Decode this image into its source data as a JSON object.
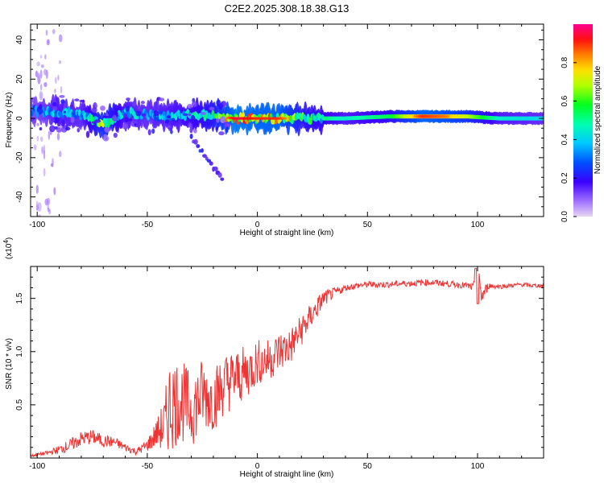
{
  "title": "C2E2.2025.308.18.38.G13",
  "colors": {
    "snr_line": "#ee3333",
    "axis": "#000000",
    "background": "#ffffff"
  },
  "chart_data": [
    {
      "type": "heatmap",
      "title": "C2E2.2025.308.18.38.G13",
      "xlabel": "Height of straight line (km)",
      "ylabel": "Frequency (Hz)",
      "xlim": [
        -103,
        130
      ],
      "ylim": [
        -50,
        48
      ],
      "xticks": [
        "-100",
        "-50",
        "0",
        "50",
        "100"
      ],
      "xtick_values": [
        -100,
        -50,
        0,
        50,
        100
      ],
      "yticks": [
        "40",
        "20",
        "0",
        "-20",
        "-40"
      ],
      "ytick_values": [
        40,
        20,
        0,
        -20,
        -40
      ],
      "colorbar": {
        "label": "Normalized spectral amplitude",
        "range": [
          0,
          1
        ],
        "ticks": [
          "0.0",
          "0.2",
          "0.4",
          "0.6",
          "0.8"
        ],
        "tick_values": [
          0.0,
          0.2,
          0.4,
          0.6,
          0.8
        ],
        "colormap": "rainbow"
      },
      "band": {
        "description_points": [
          {
            "x": -103,
            "y": 4,
            "amp": 0.3
          },
          {
            "x": -90,
            "y": 3,
            "amp": 0.45
          },
          {
            "x": -80,
            "y": 2,
            "amp": 0.4
          },
          {
            "x": -70,
            "y": -3,
            "amp": 0.7
          },
          {
            "x": -60,
            "y": 3,
            "amp": 0.45
          },
          {
            "x": -50,
            "y": 2,
            "amp": 0.4
          },
          {
            "x": -40,
            "y": 1,
            "amp": 0.45
          },
          {
            "x": -30,
            "y": 2,
            "amp": 0.5
          },
          {
            "x": -20,
            "y": 1,
            "amp": 0.6
          },
          {
            "x": -10,
            "y": 0,
            "amp": 0.9
          },
          {
            "x": 0,
            "y": 0,
            "amp": 0.85
          },
          {
            "x": 10,
            "y": 0,
            "amp": 0.85
          },
          {
            "x": 20,
            "y": 0,
            "amp": 0.6
          },
          {
            "x": 40,
            "y": 0,
            "amp": 0.45
          },
          {
            "x": 60,
            "y": 1,
            "amp": 0.55
          },
          {
            "x": 75,
            "y": 1,
            "amp": 0.85
          },
          {
            "x": 85,
            "y": 1,
            "amp": 0.8
          },
          {
            "x": 95,
            "y": 1,
            "amp": 0.7
          },
          {
            "x": 110,
            "y": 0,
            "amp": 0.45
          },
          {
            "x": 130,
            "y": 0,
            "amp": 0.4
          }
        ],
        "branch": [
          {
            "x": -30,
            "y": -10
          },
          {
            "x": -25,
            "y": -17
          },
          {
            "x": -20,
            "y": -25
          },
          {
            "x": -15,
            "y": -32
          }
        ]
      }
    },
    {
      "type": "line",
      "xlabel": "Height of straight line (km)",
      "ylabel": "SNR (10 * v/v)",
      "y_multiplier": "(x10",
      "y_multiplier_exp": "4",
      "y_multiplier_close": ")",
      "xlim": [
        -103,
        130
      ],
      "ylim": [
        0,
        1.8
      ],
      "xticks": [
        "-100",
        "-50",
        "0",
        "50",
        "100"
      ],
      "xtick_values": [
        -100,
        -50,
        0,
        50,
        100
      ],
      "yticks": [
        "0.5",
        "1.0",
        "1.5"
      ],
      "ytick_values": [
        0.5,
        1.0,
        1.5
      ],
      "series": [
        {
          "x": [
            -103,
            -95,
            -90,
            -85,
            -80,
            -75,
            -70,
            -65,
            -60,
            -55,
            -50,
            -45,
            -42,
            -40,
            -35,
            -30,
            -25,
            -20,
            -15,
            -10,
            -5,
            0,
            5,
            10,
            15,
            20,
            25,
            30,
            35,
            40,
            45,
            50,
            55,
            60,
            65,
            70,
            75,
            80,
            85,
            90,
            95,
            98,
            100,
            102,
            105,
            110,
            115,
            120,
            125,
            130
          ],
          "y": [
            0.02,
            0.05,
            0.08,
            0.12,
            0.18,
            0.2,
            0.16,
            0.15,
            0.1,
            0.06,
            0.12,
            0.25,
            0.3,
            0.5,
            0.55,
            0.45,
            0.6,
            0.55,
            0.7,
            0.75,
            0.8,
            0.9,
            0.92,
            1.0,
            1.05,
            1.2,
            1.35,
            1.5,
            1.55,
            1.6,
            1.62,
            1.63,
            1.63,
            1.63,
            1.64,
            1.64,
            1.65,
            1.65,
            1.64,
            1.63,
            1.62,
            1.6,
            1.7,
            1.52,
            1.62,
            1.61,
            1.62,
            1.63,
            1.62,
            1.62
          ],
          "noise": [
            0.01,
            0.02,
            0.04,
            0.06,
            0.07,
            0.07,
            0.06,
            0.05,
            0.04,
            0.03,
            0.06,
            0.15,
            0.3,
            0.45,
            0.4,
            0.35,
            0.35,
            0.3,
            0.3,
            0.28,
            0.25,
            0.22,
            0.2,
            0.2,
            0.18,
            0.15,
            0.12,
            0.08,
            0.05,
            0.03,
            0.03,
            0.03,
            0.03,
            0.03,
            0.03,
            0.03,
            0.03,
            0.03,
            0.03,
            0.03,
            0.03,
            0.04,
            0.12,
            0.1,
            0.03,
            0.02,
            0.02,
            0.02,
            0.02,
            0.02
          ]
        }
      ]
    }
  ]
}
